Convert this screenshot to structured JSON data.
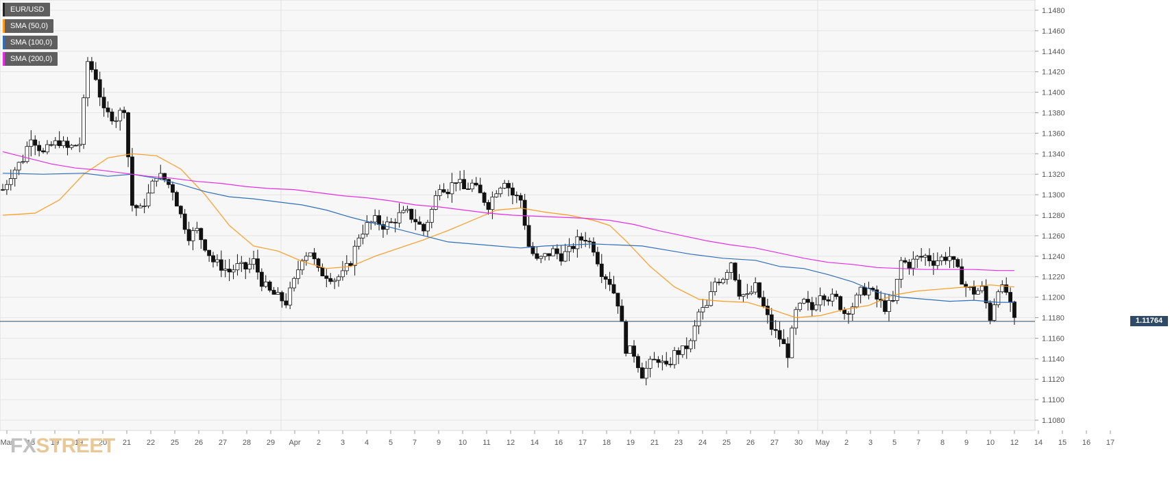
{
  "legend": [
    {
      "label": "EUR/USD",
      "color": "#222222"
    },
    {
      "label": "SMA (50,0)",
      "color": "#ff9a1f"
    },
    {
      "label": "SMA (100,0)",
      "color": "#2f6fba"
    },
    {
      "label": "SMA (200,0)",
      "color": "#e52ee5"
    }
  ],
  "watermark": {
    "part1": "FX",
    "part2": "STREET"
  },
  "current_price_label": "1.11764",
  "chart_data": {
    "type": "candlestick",
    "symbol": "EUR/USD",
    "ylim": [
      1.107,
      1.149
    ],
    "y_ticks": [
      "1.1480",
      "1.1460",
      "1.1440",
      "1.1420",
      "1.1400",
      "1.1380",
      "1.1360",
      "1.1340",
      "1.1320",
      "1.1300",
      "1.1280",
      "1.1260",
      "1.1240",
      "1.1220",
      "1.1200",
      "1.1180",
      "1.1160",
      "1.1140",
      "1.1120",
      "1.1100",
      "1.1080"
    ],
    "x_ticks": [
      "Mar",
      "18",
      "19",
      "19",
      "20",
      "21",
      "22",
      "25",
      "26",
      "27",
      "28",
      "29",
      "Apr",
      "2",
      "3",
      "4",
      "5",
      "7",
      "9",
      "10",
      "11",
      "12",
      "14",
      "16",
      "17",
      "18",
      "19",
      "21",
      "23",
      "24",
      "25",
      "26",
      "27",
      "30",
      "May",
      "2",
      "3",
      "5",
      "7",
      "8",
      "9",
      "10",
      "12",
      "14",
      "15",
      "16",
      "17"
    ],
    "current_price": 1.11764,
    "price_points": [
      {
        "t": 0,
        "p": 1.1305
      },
      {
        "t": 2,
        "p": 1.132
      },
      {
        "t": 5,
        "p": 1.1335
      },
      {
        "t": 7,
        "p": 1.1358
      },
      {
        "t": 10,
        "p": 1.134
      },
      {
        "t": 12,
        "p": 1.1348
      },
      {
        "t": 14,
        "p": 1.1352
      },
      {
        "t": 16,
        "p": 1.1345
      },
      {
        "t": 19,
        "p": 1.135
      },
      {
        "t": 21,
        "p": 1.143
      },
      {
        "t": 23,
        "p": 1.1415
      },
      {
        "t": 25,
        "p": 1.138
      },
      {
        "t": 28,
        "p": 1.1375
      },
      {
        "t": 30,
        "p": 1.1385
      },
      {
        "t": 32,
        "p": 1.129
      },
      {
        "t": 34,
        "p": 1.1285
      },
      {
        "t": 36,
        "p": 1.13
      },
      {
        "t": 38,
        "p": 1.132
      },
      {
        "t": 40,
        "p": 1.1315
      },
      {
        "t": 42,
        "p": 1.1305
      },
      {
        "t": 44,
        "p": 1.128
      },
      {
        "t": 46,
        "p": 1.126
      },
      {
        "t": 48,
        "p": 1.1265
      },
      {
        "t": 50,
        "p": 1.125
      },
      {
        "t": 52,
        "p": 1.1235
      },
      {
        "t": 54,
        "p": 1.123
      },
      {
        "t": 56,
        "p": 1.1225
      },
      {
        "t": 58,
        "p": 1.123
      },
      {
        "t": 60,
        "p": 1.1228
      },
      {
        "t": 62,
        "p": 1.1235
      },
      {
        "t": 64,
        "p": 1.1215
      },
      {
        "t": 66,
        "p": 1.1205
      },
      {
        "t": 68,
        "p": 1.12
      },
      {
        "t": 70,
        "p": 1.1195
      },
      {
        "t": 72,
        "p": 1.1215
      },
      {
        "t": 74,
        "p": 1.124
      },
      {
        "t": 76,
        "p": 1.1245
      },
      {
        "t": 78,
        "p": 1.1225
      },
      {
        "t": 80,
        "p": 1.1222
      },
      {
        "t": 82,
        "p": 1.1218
      },
      {
        "t": 84,
        "p": 1.1222
      },
      {
        "t": 86,
        "p": 1.1235
      },
      {
        "t": 88,
        "p": 1.126
      },
      {
        "t": 90,
        "p": 1.127
      },
      {
        "t": 92,
        "p": 1.1275
      },
      {
        "t": 94,
        "p": 1.127
      },
      {
        "t": 96,
        "p": 1.1272
      },
      {
        "t": 98,
        "p": 1.128
      },
      {
        "t": 100,
        "p": 1.1282
      },
      {
        "t": 102,
        "p": 1.1275
      },
      {
        "t": 104,
        "p": 1.1265
      },
      {
        "t": 106,
        "p": 1.1285
      },
      {
        "t": 108,
        "p": 1.131
      },
      {
        "t": 110,
        "p": 1.1305
      },
      {
        "t": 112,
        "p": 1.1315
      },
      {
        "t": 114,
        "p": 1.1305
      },
      {
        "t": 116,
        "p": 1.131
      },
      {
        "t": 118,
        "p": 1.13
      },
      {
        "t": 120,
        "p": 1.129
      },
      {
        "t": 122,
        "p": 1.1305
      },
      {
        "t": 124,
        "p": 1.1315
      },
      {
        "t": 126,
        "p": 1.13
      },
      {
        "t": 128,
        "p": 1.1295
      },
      {
        "t": 130,
        "p": 1.125
      },
      {
        "t": 132,
        "p": 1.1235
      },
      {
        "t": 134,
        "p": 1.124
      },
      {
        "t": 136,
        "p": 1.1245
      },
      {
        "t": 138,
        "p": 1.124
      },
      {
        "t": 140,
        "p": 1.1245
      },
      {
        "t": 142,
        "p": 1.1255
      },
      {
        "t": 144,
        "p": 1.1258
      },
      {
        "t": 146,
        "p": 1.1248
      },
      {
        "t": 148,
        "p": 1.1225
      },
      {
        "t": 150,
        "p": 1.1215
      },
      {
        "t": 152,
        "p": 1.1195
      },
      {
        "t": 154,
        "p": 1.115
      },
      {
        "t": 156,
        "p": 1.1145
      },
      {
        "t": 158,
        "p": 1.1125
      },
      {
        "t": 160,
        "p": 1.1135
      },
      {
        "t": 162,
        "p": 1.114
      },
      {
        "t": 164,
        "p": 1.113
      },
      {
        "t": 166,
        "p": 1.1145
      },
      {
        "t": 168,
        "p": 1.1148
      },
      {
        "t": 170,
        "p": 1.1155
      },
      {
        "t": 172,
        "p": 1.1185
      },
      {
        "t": 174,
        "p": 1.119
      },
      {
        "t": 176,
        "p": 1.1215
      },
      {
        "t": 178,
        "p": 1.122
      },
      {
        "t": 180,
        "p": 1.1235
      },
      {
        "t": 182,
        "p": 1.1205
      },
      {
        "t": 184,
        "p": 1.12
      },
      {
        "t": 186,
        "p": 1.121
      },
      {
        "t": 188,
        "p": 1.119
      },
      {
        "t": 190,
        "p": 1.117
      },
      {
        "t": 192,
        "p": 1.116
      },
      {
        "t": 194,
        "p": 1.1145
      },
      {
        "t": 196,
        "p": 1.1185
      },
      {
        "t": 198,
        "p": 1.1195
      },
      {
        "t": 200,
        "p": 1.1188
      },
      {
        "t": 202,
        "p": 1.1205
      },
      {
        "t": 204,
        "p": 1.12
      },
      {
        "t": 206,
        "p": 1.1198
      },
      {
        "t": 208,
        "p": 1.1185
      },
      {
        "t": 210,
        "p": 1.1192
      },
      {
        "t": 212,
        "p": 1.1205
      },
      {
        "t": 214,
        "p": 1.1208
      },
      {
        "t": 216,
        "p": 1.1198
      },
      {
        "t": 218,
        "p": 1.119
      },
      {
        "t": 220,
        "p": 1.1195
      },
      {
        "t": 222,
        "p": 1.1235
      },
      {
        "t": 224,
        "p": 1.1232
      },
      {
        "t": 226,
        "p": 1.1238
      },
      {
        "t": 228,
        "p": 1.124
      },
      {
        "t": 230,
        "p": 1.1235
      },
      {
        "t": 232,
        "p": 1.1238
      },
      {
        "t": 234,
        "p": 1.124
      },
      {
        "t": 236,
        "p": 1.1225
      },
      {
        "t": 238,
        "p": 1.121
      },
      {
        "t": 240,
        "p": 1.1205
      },
      {
        "t": 242,
        "p": 1.1208
      },
      {
        "t": 244,
        "p": 1.118
      },
      {
        "t": 246,
        "p": 1.121
      },
      {
        "t": 248,
        "p": 1.1205
      },
      {
        "t": 250,
        "p": 1.1176
      }
    ],
    "sma50": [
      [
        0,
        1.128
      ],
      [
        8,
        1.1282
      ],
      [
        14,
        1.1295
      ],
      [
        20,
        1.132
      ],
      [
        26,
        1.1336
      ],
      [
        32,
        1.134
      ],
      [
        38,
        1.1338
      ],
      [
        44,
        1.1325
      ],
      [
        50,
        1.13
      ],
      [
        56,
        1.127
      ],
      [
        62,
        1.125
      ],
      [
        68,
        1.1245
      ],
      [
        74,
        1.1235
      ],
      [
        80,
        1.1228
      ],
      [
        86,
        1.123
      ],
      [
        92,
        1.124
      ],
      [
        98,
        1.1248
      ],
      [
        104,
        1.1256
      ],
      [
        110,
        1.1265
      ],
      [
        116,
        1.1275
      ],
      [
        122,
        1.1285
      ],
      [
        128,
        1.1287
      ],
      [
        134,
        1.1283
      ],
      [
        140,
        1.128
      ],
      [
        146,
        1.1275
      ],
      [
        150,
        1.127
      ],
      [
        154,
        1.1255
      ],
      [
        160,
        1.123
      ],
      [
        166,
        1.121
      ],
      [
        172,
        1.1198
      ],
      [
        178,
        1.1196
      ],
      [
        184,
        1.1195
      ],
      [
        190,
        1.1188
      ],
      [
        196,
        1.118
      ],
      [
        202,
        1.1182
      ],
      [
        208,
        1.1188
      ],
      [
        214,
        1.1192
      ],
      [
        220,
        1.1202
      ],
      [
        226,
        1.1206
      ],
      [
        232,
        1.1208
      ],
      [
        238,
        1.121
      ],
      [
        244,
        1.1212
      ],
      [
        250,
        1.121
      ]
    ],
    "sma100": [
      [
        0,
        1.1321
      ],
      [
        10,
        1.132
      ],
      [
        20,
        1.1321
      ],
      [
        26,
        1.1318
      ],
      [
        32,
        1.132
      ],
      [
        38,
        1.1316
      ],
      [
        44,
        1.131
      ],
      [
        50,
        1.1303
      ],
      [
        56,
        1.1298
      ],
      [
        62,
        1.1296
      ],
      [
        68,
        1.1293
      ],
      [
        74,
        1.129
      ],
      [
        80,
        1.1285
      ],
      [
        86,
        1.1278
      ],
      [
        92,
        1.1272
      ],
      [
        98,
        1.1266
      ],
      [
        104,
        1.126
      ],
      [
        110,
        1.1254
      ],
      [
        116,
        1.1252
      ],
      [
        122,
        1.125
      ],
      [
        128,
        1.1248
      ],
      [
        134,
        1.125
      ],
      [
        140,
        1.1251
      ],
      [
        146,
        1.1252
      ],
      [
        152,
        1.1251
      ],
      [
        158,
        1.125
      ],
      [
        164,
        1.1246
      ],
      [
        170,
        1.1242
      ],
      [
        178,
        1.1238
      ],
      [
        186,
        1.1236
      ],
      [
        192,
        1.123
      ],
      [
        198,
        1.1228
      ],
      [
        204,
        1.1222
      ],
      [
        210,
        1.1215
      ],
      [
        216,
        1.1205
      ],
      [
        222,
        1.12
      ],
      [
        228,
        1.1198
      ],
      [
        234,
        1.1196
      ],
      [
        240,
        1.1197
      ],
      [
        246,
        1.1195
      ],
      [
        250,
        1.1195
      ]
    ],
    "sma200": [
      [
        0,
        1.1342
      ],
      [
        6,
        1.1336
      ],
      [
        12,
        1.133
      ],
      [
        18,
        1.1326
      ],
      [
        24,
        1.1324
      ],
      [
        30,
        1.1321
      ],
      [
        36,
        1.1318
      ],
      [
        42,
        1.1316
      ],
      [
        48,
        1.1313
      ],
      [
        54,
        1.1311
      ],
      [
        60,
        1.1308
      ],
      [
        66,
        1.1306
      ],
      [
        72,
        1.1305
      ],
      [
        78,
        1.1302
      ],
      [
        84,
        1.1299
      ],
      [
        90,
        1.1297
      ],
      [
        96,
        1.1294
      ],
      [
        102,
        1.129
      ],
      [
        108,
        1.1288
      ],
      [
        114,
        1.1285
      ],
      [
        120,
        1.1282
      ],
      [
        126,
        1.128
      ],
      [
        132,
        1.1279
      ],
      [
        138,
        1.1278
      ],
      [
        144,
        1.1277
      ],
      [
        150,
        1.1275
      ],
      [
        156,
        1.1271
      ],
      [
        162,
        1.1265
      ],
      [
        168,
        1.126
      ],
      [
        174,
        1.1255
      ],
      [
        180,
        1.1251
      ],
      [
        186,
        1.1248
      ],
      [
        192,
        1.1243
      ],
      [
        198,
        1.1238
      ],
      [
        204,
        1.1234
      ],
      [
        210,
        1.1232
      ],
      [
        216,
        1.1229
      ],
      [
        222,
        1.1228
      ],
      [
        228,
        1.1227
      ],
      [
        234,
        1.1227
      ],
      [
        240,
        1.1227
      ],
      [
        246,
        1.1226
      ],
      [
        250,
        1.1226
      ]
    ]
  }
}
